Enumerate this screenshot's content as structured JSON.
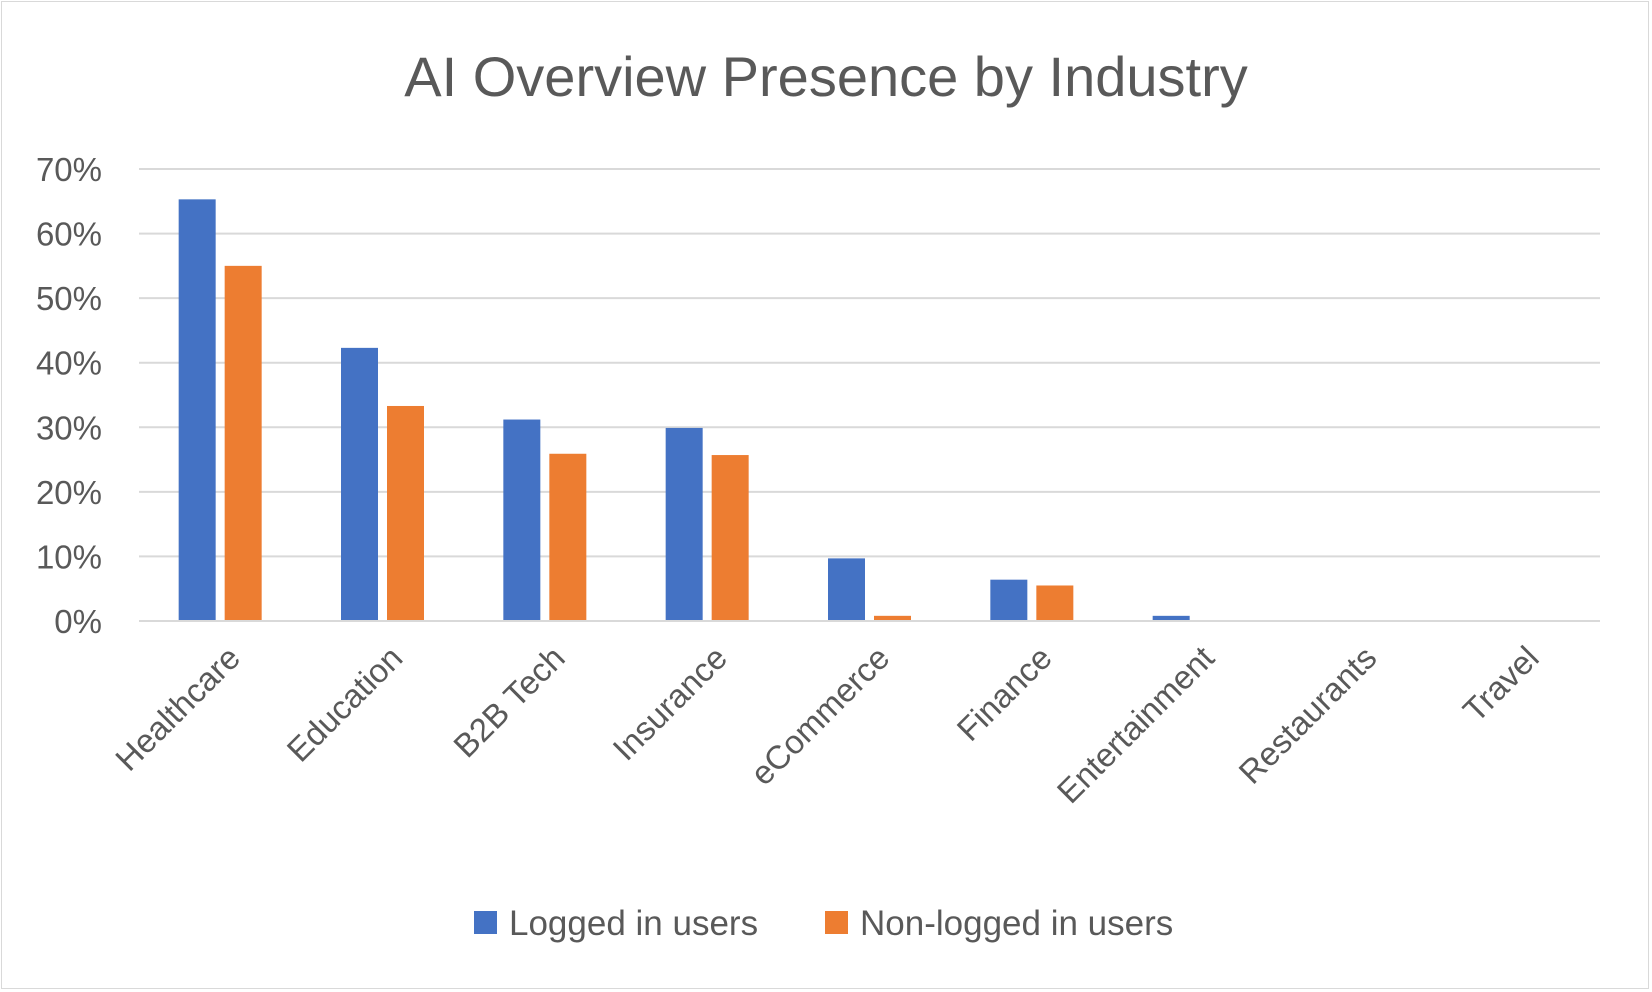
{
  "chart_data": {
    "type": "bar",
    "title": "AI Overview Presence by Industry",
    "xlabel": "",
    "ylabel": "",
    "categories": [
      "Healthcare",
      "Education",
      "B2B Tech",
      "Insurance",
      "eCommerce",
      "Finance",
      "Entertainment",
      "Restaurants",
      "Travel"
    ],
    "series": [
      {
        "name": "Logged in users",
        "color": "#4472C4",
        "values": [
          65.3,
          42.3,
          31.2,
          29.9,
          9.7,
          6.4,
          0.8,
          0,
          0
        ]
      },
      {
        "name": "Non-logged in users",
        "color": "#ED7D31",
        "values": [
          55.0,
          33.3,
          25.9,
          25.7,
          0.8,
          5.5,
          0,
          0,
          0
        ]
      }
    ],
    "ylim": [
      0,
      70
    ],
    "yticks": [
      0,
      10,
      20,
      30,
      40,
      50,
      60,
      70
    ],
    "ytick_labels": [
      "0%",
      "10%",
      "20%",
      "30%",
      "40%",
      "50%",
      "60%",
      "70%"
    ],
    "grid": true,
    "legend_position": "bottom"
  }
}
